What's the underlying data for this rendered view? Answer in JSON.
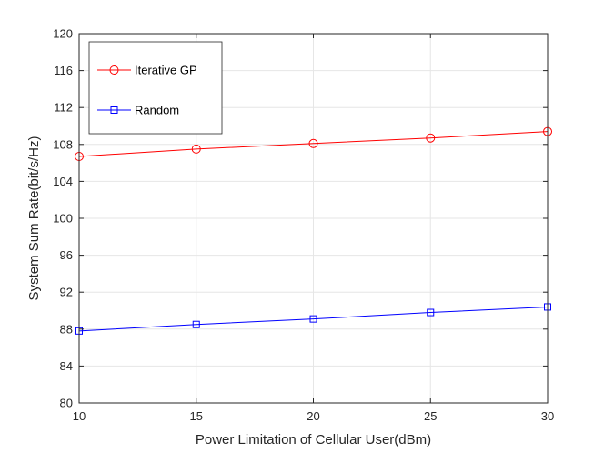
{
  "chart_data": {
    "type": "line",
    "xlabel": "Power Limitation of Cellular User(dBm)",
    "ylabel": "System Sum Rate(bit/s/Hz)",
    "x": [
      10,
      15,
      20,
      25,
      30
    ],
    "xlim": [
      10,
      30
    ],
    "ylim": [
      80,
      120
    ],
    "xticks": [
      10,
      15,
      20,
      25,
      30
    ],
    "yticks": [
      80,
      84,
      88,
      92,
      96,
      100,
      104,
      108,
      112,
      116,
      120
    ],
    "grid": true,
    "legend_position": "top-left",
    "series": [
      {
        "name": "Iterative GP",
        "values": [
          106.7,
          107.5,
          108.1,
          108.7,
          109.4
        ],
        "color": "#ff0000",
        "marker": "circle"
      },
      {
        "name": "Random",
        "values": [
          87.8,
          88.5,
          89.1,
          89.8,
          90.4
        ],
        "color": "#0000ff",
        "marker": "square"
      }
    ]
  }
}
